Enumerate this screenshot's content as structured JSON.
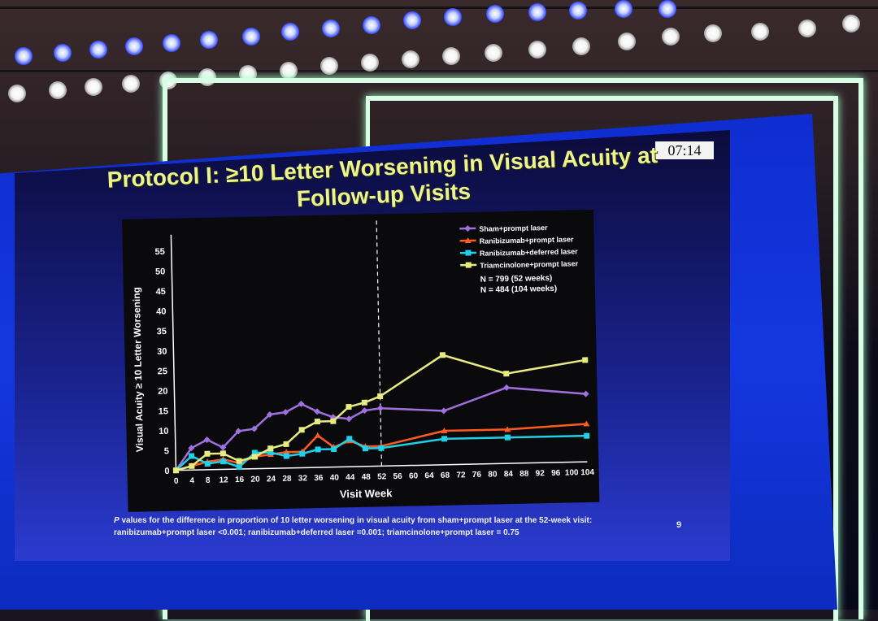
{
  "clock": "07:14",
  "slide": {
    "title_line1": "Protocol I: ≥10 Letter Worsening in Visual Acuity at",
    "title_line2": "Follow-up Visits",
    "footnote_p": "P",
    "footnote_rest": " values for the difference in proportion of 10 letter worsening in visual acuity from sham+prompt laser at the 52-week visit: ranibizumab+prompt laser <0.001; ranibizumab+deferred laser =0.001; triamcinolone+prompt laser = 0.75",
    "page_number": "9"
  },
  "chart_data": {
    "type": "line",
    "xlabel": "Visit Week",
    "ylabel": "Visual Acuity ≥ 10 Letter Worsening",
    "ylim": [
      0,
      55
    ],
    "xlim": [
      0,
      104
    ],
    "x_ticks": [
      0,
      4,
      8,
      12,
      16,
      20,
      24,
      28,
      32,
      36,
      40,
      44,
      48,
      52,
      56,
      60,
      64,
      68,
      72,
      76,
      80,
      84,
      88,
      92,
      96,
      100,
      104
    ],
    "x_tick_labels": [
      "0",
      "4",
      "8",
      "12",
      "16",
      "20",
      "24",
      "28",
      "32",
      "36",
      "40",
      "44",
      "48",
      "52",
      "56",
      "60",
      "64",
      "68",
      "72",
      "76",
      "80",
      "84",
      "88",
      "92",
      "96",
      "100",
      "104"
    ],
    "y_ticks": [
      0,
      5,
      10,
      15,
      20,
      25,
      30,
      35,
      40,
      45,
      50,
      55
    ],
    "reference_line_x": 52,
    "notes": [
      "N = 799 (52 weeks)",
      "N = 484 (104 weeks)"
    ],
    "legend_position": "top-right",
    "series": [
      {
        "name": "Sham+prompt laser",
        "color": "#a070e0",
        "marker": "diamond",
        "x": [
          0,
          4,
          8,
          12,
          16,
          20,
          24,
          28,
          32,
          36,
          40,
          44,
          48,
          52,
          68,
          84,
          104
        ],
        "values": [
          0,
          5.5,
          7.5,
          5.5,
          9.5,
          10,
          13.5,
          14,
          16,
          14,
          12.5,
          12,
          14,
          14.5,
          13.5,
          19,
          17
        ]
      },
      {
        "name": "Ranibizumab+prompt laser",
        "color": "#ff5a20",
        "marker": "triangle",
        "x": [
          0,
          4,
          8,
          12,
          16,
          20,
          24,
          28,
          32,
          36,
          40,
          44,
          48,
          52,
          68,
          84,
          104
        ],
        "values": [
          0,
          1,
          2,
          2.5,
          1.5,
          3,
          3.5,
          4,
          4,
          8,
          5,
          6.5,
          5,
          5,
          8.5,
          8.5,
          9.5
        ]
      },
      {
        "name": "Ranibizumab+deferred laser",
        "color": "#20d0e8",
        "marker": "square",
        "x": [
          0,
          4,
          8,
          12,
          16,
          20,
          24,
          28,
          32,
          36,
          40,
          44,
          48,
          52,
          68,
          84,
          104
        ],
        "values": [
          0,
          3.5,
          1.5,
          2,
          0.5,
          4,
          4,
          3,
          3.5,
          4.5,
          4.5,
          7,
          4.5,
          4.5,
          6.5,
          6.5,
          6.5
        ]
      },
      {
        "name": "Triamcinolone+prompt laser",
        "color": "#e8ec80",
        "marker": "square",
        "x": [
          0,
          4,
          8,
          12,
          16,
          20,
          24,
          28,
          32,
          36,
          40,
          44,
          48,
          52,
          68,
          84,
          104
        ],
        "values": [
          0,
          1,
          4,
          4,
          2,
          3,
          5,
          6,
          9.5,
          11.5,
          11.5,
          15,
          16,
          17.5,
          27.5,
          22.5,
          25.5
        ]
      }
    ]
  }
}
